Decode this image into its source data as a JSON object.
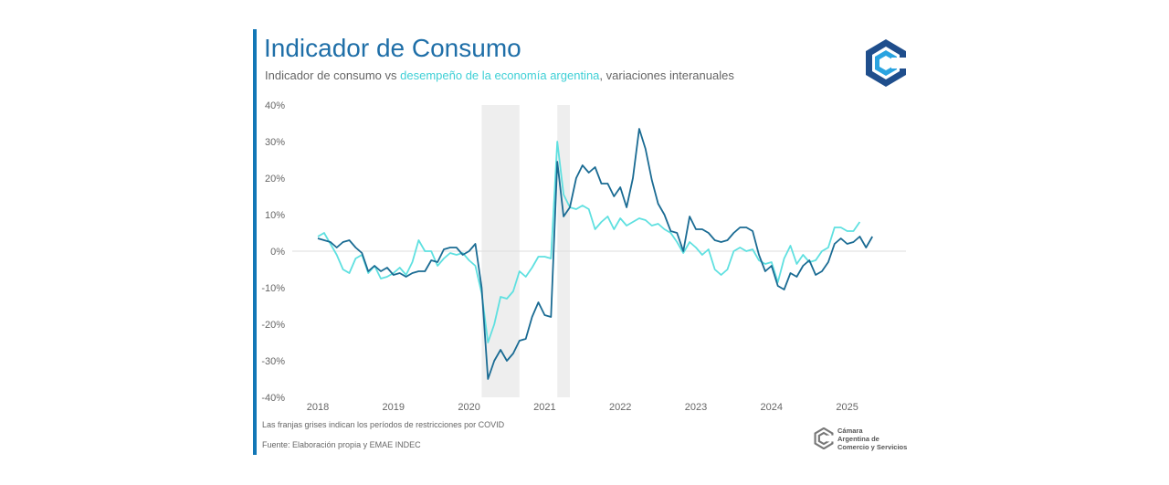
{
  "header": {
    "title": "Indicador de Consumo",
    "subtitle_part1": "Indicador de consumo vs ",
    "subtitle_highlight": "desempeño de la economía argentina",
    "subtitle_part2": ", variaciones interanuales"
  },
  "footer": {
    "note": "Las franjas grises indican los períodos de restricciones por COVID",
    "source": "Fuente: Elaboración propia y EMAE INDEC",
    "org_line1": "Cámara",
    "org_line2": "Argentina de",
    "org_line3": "Comercio y Servicios"
  },
  "colors": {
    "consumo": "#1a6b93",
    "emae": "#5fe0e0",
    "covid_band": "#eeeeee",
    "title": "#1f6fa8",
    "accent": "#1277b6",
    "logo_dark": "#1f4e8c",
    "logo_light": "#29a3e0"
  },
  "icons": {
    "brand": "cac-logo-icon"
  },
  "chart_data": {
    "type": "line",
    "xlabel": "",
    "ylabel": "",
    "ylim": [
      -40,
      40
    ],
    "y_ticks": [
      40,
      30,
      20,
      10,
      0,
      -10,
      -20,
      -30,
      -40
    ],
    "y_tick_labels": [
      "40%",
      "30%",
      "20%",
      "10%",
      "0%",
      "-10%",
      "-20%",
      "-30%",
      "-40%"
    ],
    "x_ticks": [
      "2018",
      "2019",
      "2020",
      "2021",
      "2022",
      "2023",
      "2024",
      "2025"
    ],
    "x_start": "2018-01",
    "grid": false,
    "legend": "none",
    "shaded_periods": [
      {
        "start": "2020-03",
        "end": "2020-09"
      },
      {
        "start": "2021-03",
        "end": "2021-05"
      }
    ],
    "series": [
      {
        "id": "consumo",
        "values": [
          3.5,
          3,
          2.5,
          1,
          2.5,
          3,
          1,
          -0.5,
          -5.5,
          -4,
          -5.5,
          -4.5,
          -6.5,
          -6,
          -7,
          -6,
          -5.5,
          -5.5,
          -2.5,
          -3,
          0.5,
          1,
          1,
          -1,
          0,
          2,
          -10,
          -35,
          -30,
          -27,
          -30,
          -28,
          -24.5,
          -24,
          -18,
          -14,
          -17.5,
          -18,
          24.5,
          9.5,
          12,
          20,
          23.5,
          21.5,
          23,
          18.5,
          18.5,
          15,
          17.5,
          12,
          20,
          33.5,
          28,
          19.5,
          13,
          10,
          5.5,
          5,
          0,
          9.5,
          6,
          6,
          5,
          3,
          2.5,
          3,
          5,
          6.5,
          6.5,
          5.5,
          -1,
          -5.5,
          -4,
          -9.5,
          -10.5,
          -6,
          -7,
          -4,
          -2.5,
          -6.5,
          -5.5,
          -3,
          2,
          3.5,
          2,
          2.5,
          4,
          1,
          4
        ]
      },
      {
        "id": "emae",
        "values": [
          4,
          5,
          2,
          -1,
          -5,
          -6,
          -2,
          -1,
          -6,
          -4,
          -7.5,
          -7,
          -6,
          -4.5,
          -6.5,
          -3,
          3,
          0,
          0,
          -4,
          -2,
          -0.5,
          -1,
          -0.5,
          -2.5,
          -4,
          -11.5,
          -25,
          -20,
          -12.5,
          -13,
          -11,
          -5.5,
          -7,
          -4.5,
          -1.5,
          -1.5,
          -2,
          30,
          15.5,
          12,
          11.5,
          12.5,
          11.5,
          6,
          8,
          9.5,
          6,
          9,
          7,
          8,
          9,
          8.5,
          7,
          7.5,
          6,
          5,
          2.5,
          -0.5,
          2.5,
          1,
          -1,
          0.5,
          -5,
          -6.5,
          -5,
          0,
          1,
          0,
          0.5,
          -2.5,
          -3.5,
          -3,
          -8.5,
          -2,
          1.5,
          -3.5,
          -1,
          -3,
          -2.5,
          0,
          1,
          6.5,
          6.5,
          5.5,
          5.5,
          8
        ]
      }
    ]
  }
}
